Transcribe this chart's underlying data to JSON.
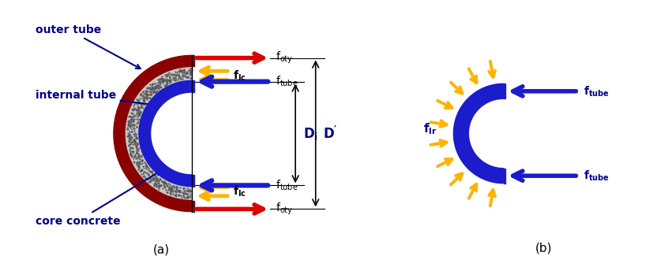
{
  "fig_width": 8.27,
  "fig_height": 3.39,
  "dpi": 100,
  "outer_tube_color": "#8B0000",
  "inner_tube_color": "#1C1CCC",
  "concrete_color": "#C8C8C8",
  "arrow_red": "#DD0000",
  "arrow_yellow": "#FFB300",
  "arrow_blue": "#1C1CCC",
  "text_blue": "#00008B",
  "text_label": "#CC6600",
  "label_a": "(a)",
  "label_b": "(b)",
  "label_outer_tube": "outer tube",
  "label_internal_tube": "internal tube",
  "label_core_concrete": "core concrete"
}
